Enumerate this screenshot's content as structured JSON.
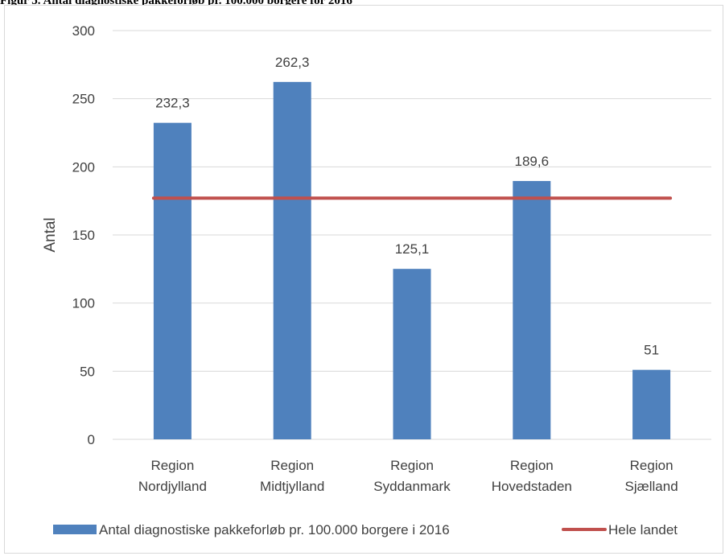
{
  "figure_title": "Figur 5. Antal diagnostiske pakkeforløb pr. 100.000 borgere for 2016",
  "chart_data": {
    "type": "bar",
    "title": "",
    "xlabel": "",
    "ylabel": "Antal",
    "ylim": [
      0,
      300
    ],
    "yticks": [
      0,
      50,
      100,
      150,
      200,
      250,
      300
    ],
    "grid": true,
    "legend_position": "bottom",
    "categories": [
      [
        "Region",
        "Nordjylland"
      ],
      [
        "Region",
        "Midtjylland"
      ],
      [
        "Region",
        "Syddanmark"
      ],
      [
        "Region",
        "Hovedstaden"
      ],
      [
        "Region",
        "Sjælland"
      ]
    ],
    "series": [
      {
        "name": "Antal diagnostiske pakkeforløb pr. 100.000 borgere i 2016",
        "kind": "bar",
        "color": "#4f81bd",
        "values": [
          232.3,
          262.3,
          125.1,
          189.6,
          51
        ],
        "labels": [
          "232,3",
          "262,3",
          "125,1",
          "189,6",
          "51"
        ]
      },
      {
        "name": "Hele landet",
        "kind": "line",
        "color": "#c0504d",
        "values": [
          177,
          177,
          177,
          177,
          177
        ]
      }
    ]
  }
}
